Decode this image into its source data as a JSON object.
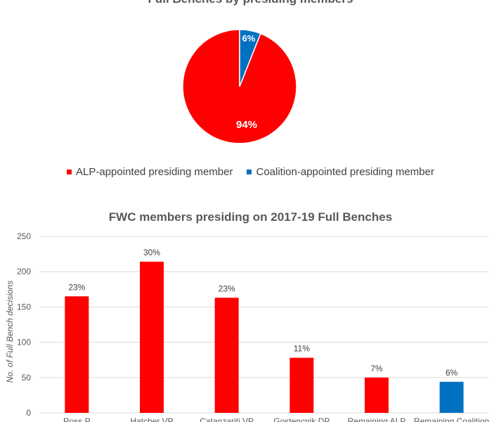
{
  "colors": {
    "alp": "#FF0000",
    "coalition": "#0070C0",
    "axis_text": "#595959",
    "grid": "#D9D9D9"
  },
  "chart_data": [
    {
      "type": "pie",
      "title": "Full Benches by presiding members",
      "slices": [
        {
          "label": "ALP-appointed presiding member",
          "value": 94,
          "data_label": "94%",
          "color": "#FF0000"
        },
        {
          "label": "Coalition-appointed presiding member",
          "value": 6,
          "data_label": "6%",
          "color": "#0070C0"
        }
      ],
      "legend_position": "bottom"
    },
    {
      "type": "bar",
      "title": "FWC members presiding on 2017-19 Full Benches",
      "ylabel": "No. of Full Bench decisions",
      "xlabel": "",
      "ylim": [
        0,
        250
      ],
      "yticks": [
        0,
        50,
        100,
        150,
        200,
        250
      ],
      "grid": true,
      "categories": [
        "Ross P",
        "Hatcher VP",
        "Catanzariti VP",
        "Gostencnik DP",
        "Remaining ALP",
        "Remaining Coalition"
      ],
      "values": [
        165,
        214,
        163,
        78,
        50,
        44
      ],
      "data_labels": [
        "23%",
        "30%",
        "23%",
        "11%",
        "7%",
        "6%"
      ],
      "bar_colors": [
        "#FF0000",
        "#FF0000",
        "#FF0000",
        "#FF0000",
        "#FF0000",
        "#0070C0"
      ]
    }
  ]
}
